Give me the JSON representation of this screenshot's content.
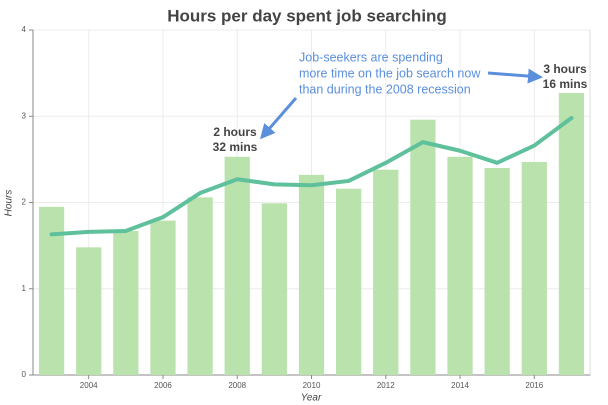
{
  "chart_data": {
    "type": "bar",
    "title": "Hours per day spent job searching",
    "x_label": "Year",
    "y_label": "Hours",
    "x": [
      2003,
      2004,
      2005,
      2006,
      2007,
      2008,
      2009,
      2010,
      2011,
      2012,
      2013,
      2014,
      2015,
      2016,
      2017
    ],
    "series": [
      {
        "type": "bar",
        "color": "#b9e2ad",
        "values": [
          1.95,
          1.48,
          1.67,
          1.79,
          2.06,
          2.53,
          1.99,
          2.32,
          2.16,
          2.38,
          2.96,
          2.53,
          2.4,
          2.47,
          3.27
        ]
      },
      {
        "type": "line",
        "color": "#5fc09c",
        "values": [
          1.63,
          1.66,
          1.67,
          1.83,
          2.11,
          2.27,
          2.21,
          2.2,
          2.25,
          2.46,
          2.7,
          2.6,
          2.46,
          2.66,
          2.98
        ]
      }
    ],
    "xlim": [
      2002.5,
      2017.5
    ],
    "xticks": [
      2004,
      2006,
      2008,
      2010,
      2012,
      2014,
      2016
    ],
    "ylim": [
      0,
      4
    ],
    "yticks": [
      0,
      1,
      2,
      3,
      4
    ],
    "grid": true,
    "annotations": [
      {
        "lines": [
          "2 hours",
          "32 mins"
        ]
      },
      {
        "lines": [
          "3 hours",
          "16 mins"
        ]
      },
      {
        "lines": [
          "Job-seekers are spending",
          "more time on the job search now",
          "than during the 2008 recession"
        ]
      }
    ]
  }
}
